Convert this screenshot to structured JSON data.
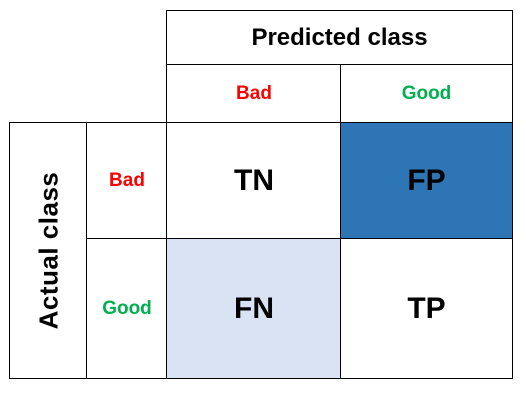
{
  "matrix": {
    "header": {
      "predicted": "Predicted class",
      "actual": "Actual class"
    },
    "predicted_labels": [
      {
        "text": "Bad",
        "color": "#ff0000"
      },
      {
        "text": "Good",
        "color": "#00b050"
      }
    ],
    "actual_labels": [
      {
        "text": "Bad",
        "color": "#ff0000"
      },
      {
        "text": "Good",
        "color": "#00b050"
      }
    ],
    "cells": {
      "tn": {
        "text": "TN",
        "fill": "#ffffff"
      },
      "fp": {
        "text": "FP",
        "fill": "#2e75b6"
      },
      "fn": {
        "text": "FN",
        "fill": "#dae3f3"
      },
      "tp": {
        "text": "TP",
        "fill": "#ffffff"
      }
    }
  }
}
